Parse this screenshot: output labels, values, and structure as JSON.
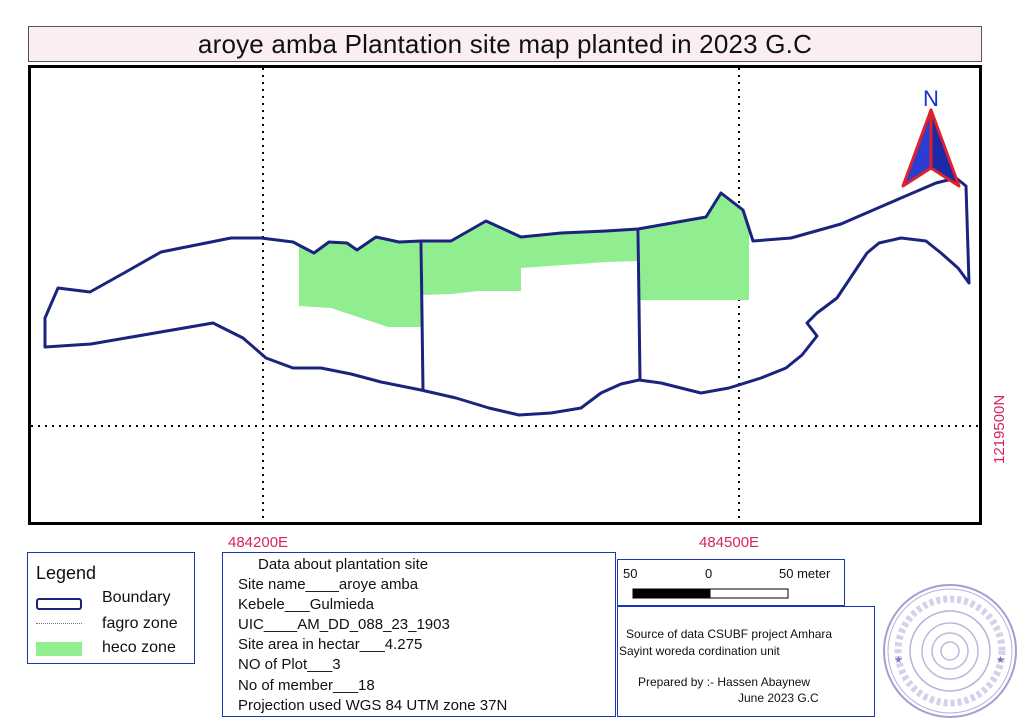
{
  "title": "aroye amba Plantation site map planted in 2023 G.C",
  "north_label": "N",
  "grid": {
    "easting_left": "484200E",
    "easting_right": "484500E",
    "northing": "1219500N"
  },
  "legend": {
    "title": "Legend",
    "items": [
      {
        "label": "Boundary",
        "symbol": "boundary"
      },
      {
        "label": "fagro zone",
        "symbol": "fagro"
      },
      {
        "label": "heco zone",
        "symbol": "heco"
      }
    ]
  },
  "site_info": {
    "heading": "Data about plantation site",
    "lines": [
      "Site name____aroye amba",
      "Kebele___Gulmieda",
      "UIC____AM_DD_088_23_1903",
      "Site area in hectar___4.275",
      "NO of Plot___3",
      "No of member___18",
      "Projection used     WGS 84 UTM zone 37N"
    ]
  },
  "scale_bar": {
    "left": "50",
    "middle": "0",
    "right": "50 meter"
  },
  "source": {
    "line1": "Source of data CSUBF project Amhara",
    "line2": "Sayint woreda cordination unit",
    "prepared_by": "Prepared by :- Hassen Abaynew",
    "date": "June 2023 G.C"
  },
  "colors": {
    "boundary": "#1a237e",
    "heco": "#90ee90",
    "coordinate_text": "#d6245c",
    "north_arrow_fill": "#2a3fd1",
    "north_arrow_outline": "#e0202a",
    "stamp": "#7b6bb8"
  }
}
